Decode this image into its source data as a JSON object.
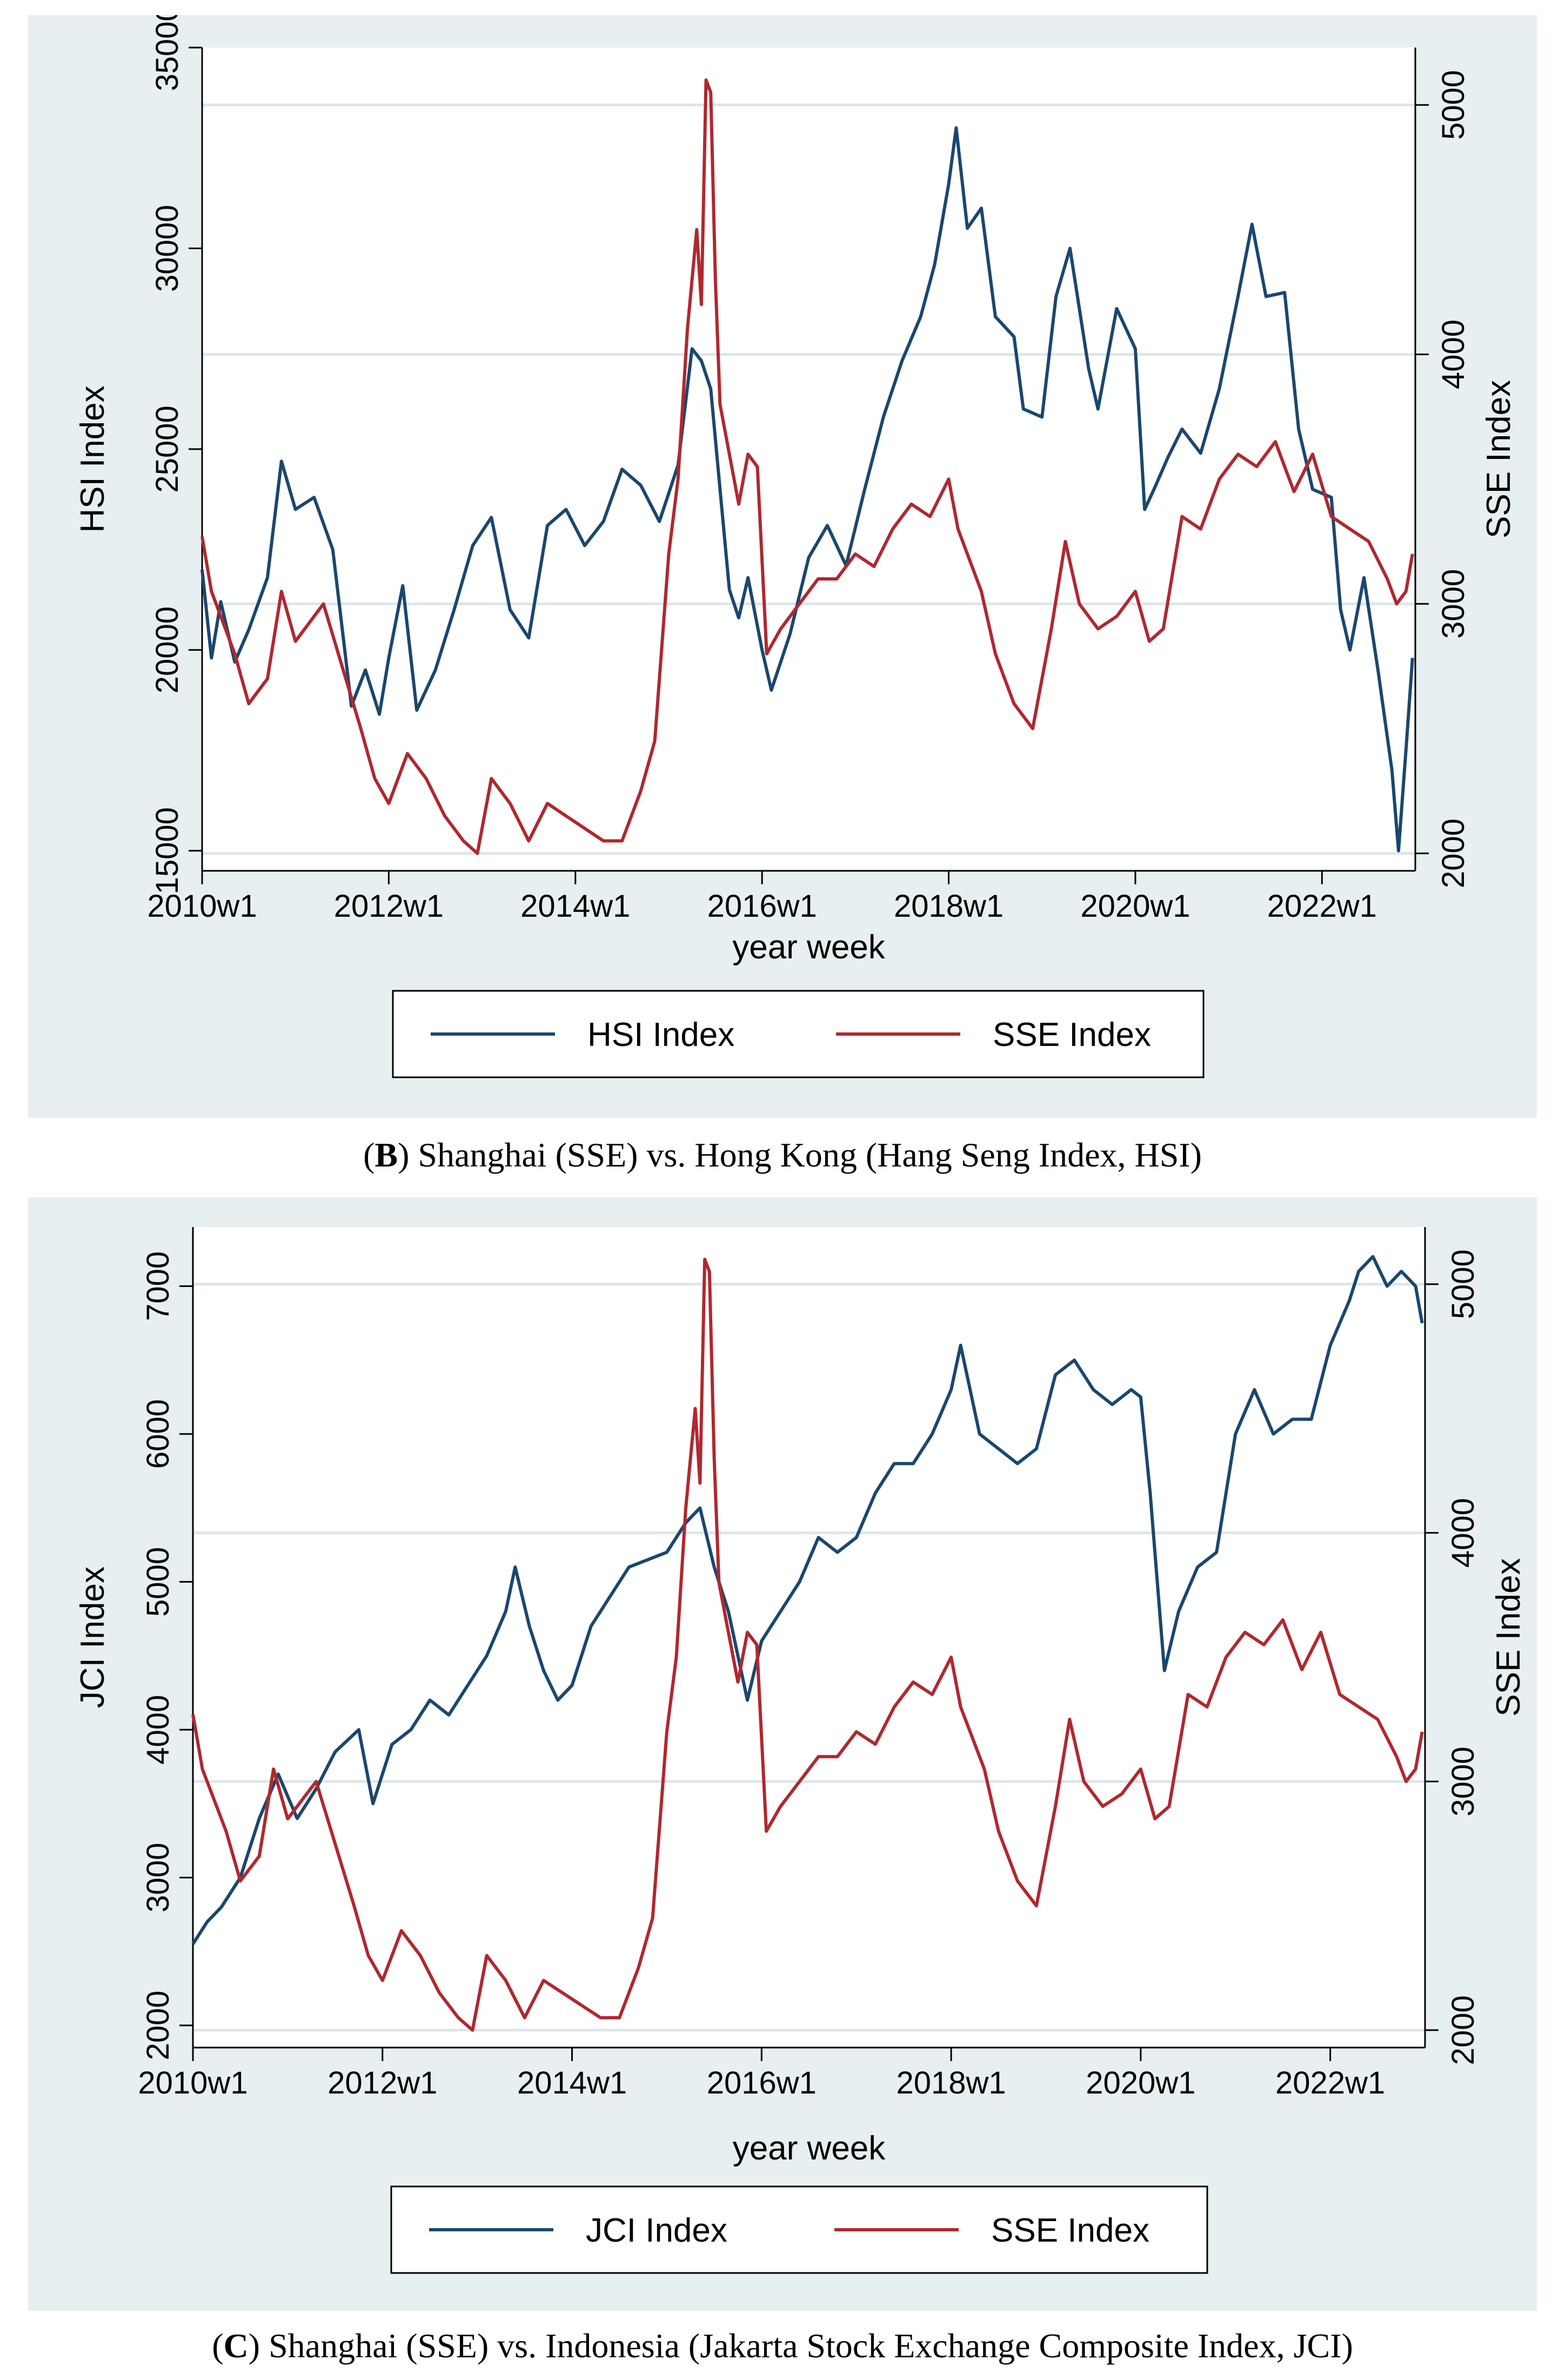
{
  "panels": [
    {
      "caption_letter": "B",
      "caption_text": ") Shanghai (SSE) vs. Hong Kong (Hang Seng Index, HSI)",
      "chart_data": {
        "type": "line",
        "xlabel": "year week",
        "x_ticks": [
          "2010w1",
          "2012w1",
          "2014w1",
          "2016w1",
          "2018w1",
          "2020w1",
          "2022w1"
        ],
        "x_range": [
          2010.0,
          2023.0
        ],
        "left_axis": {
          "label": "HSI Index",
          "ticks": [
            15000,
            20000,
            25000,
            30000,
            35000
          ],
          "range": [
            14500,
            35000
          ]
        },
        "right_axis": {
          "label": "SSE Index",
          "ticks": [
            2000,
            3000,
            4000,
            5000
          ],
          "range": [
            1930,
            5230
          ]
        },
        "legend": [
          "HSI Index",
          "SSE Index"
        ],
        "legend_position": "bottom",
        "series": [
          {
            "name": "HSI Index",
            "axis": "left",
            "color": "#1a476f",
            "x": [
              2010.0,
              2010.1,
              2010.2,
              2010.35,
              2010.5,
              2010.7,
              2010.85,
              2011.0,
              2011.2,
              2011.4,
              2011.6,
              2011.75,
              2011.9,
              2012.0,
              2012.15,
              2012.3,
              2012.5,
              2012.7,
              2012.9,
              2013.1,
              2013.3,
              2013.5,
              2013.7,
              2013.9,
              2014.1,
              2014.3,
              2014.5,
              2014.7,
              2014.9,
              2015.1,
              2015.25,
              2015.35,
              2015.45,
              2015.55,
              2015.65,
              2015.75,
              2015.85,
              2016.0,
              2016.1,
              2016.3,
              2016.5,
              2016.7,
              2016.9,
              2017.1,
              2017.3,
              2017.5,
              2017.7,
              2017.85,
              2018.0,
              2018.08,
              2018.2,
              2018.35,
              2018.5,
              2018.7,
              2018.8,
              2019.0,
              2019.15,
              2019.3,
              2019.5,
              2019.6,
              2019.8,
              2020.0,
              2020.1,
              2020.2,
              2020.35,
              2020.5,
              2020.7,
              2020.9,
              2021.1,
              2021.25,
              2021.4,
              2021.6,
              2021.75,
              2021.9,
              2022.1,
              2022.2,
              2022.3,
              2022.45,
              2022.6,
              2022.75,
              2022.82,
              2022.9,
              2022.97
            ],
            "values": [
              22000,
              19800,
              21200,
              19700,
              20500,
              21800,
              24700,
              23500,
              23800,
              22500,
              18600,
              19500,
              18400,
              19800,
              21600,
              18500,
              19500,
              21000,
              22600,
              23300,
              21000,
              20300,
              23100,
              23500,
              22600,
              23200,
              24500,
              24100,
              23200,
              24600,
              27500,
              27200,
              26500,
              24000,
              21500,
              20800,
              21800,
              20000,
              19000,
              20400,
              22300,
              23100,
              22100,
              24000,
              25800,
              27200,
              28300,
              29600,
              31600,
              33000,
              30500,
              31000,
              28300,
              27800,
              26000,
              25800,
              28800,
              30000,
              27000,
              26000,
              28500,
              27500,
              23500,
              24000,
              24800,
              25500,
              24900,
              26500,
              28800,
              30600,
              28800,
              28900,
              25500,
              24000,
              23800,
              21000,
              20000,
              21800,
              19500,
              17000,
              15000,
              17500,
              19800
            ]
          },
          {
            "name": "SSE Index",
            "axis": "right",
            "color": "#b0282f",
            "x": [
              2010.0,
              2010.1,
              2010.2,
              2010.35,
              2010.5,
              2010.7,
              2010.85,
              2011.0,
              2011.3,
              2011.5,
              2011.7,
              2011.85,
              2012.0,
              2012.2,
              2012.4,
              2012.6,
              2012.8,
              2012.95,
              2013.1,
              2013.3,
              2013.5,
              2013.7,
              2013.9,
              2014.1,
              2014.3,
              2014.5,
              2014.7,
              2014.85,
              2015.0,
              2015.1,
              2015.2,
              2015.3,
              2015.35,
              2015.4,
              2015.45,
              2015.5,
              2015.55,
              2015.65,
              2015.75,
              2015.85,
              2015.95,
              2016.05,
              2016.2,
              2016.4,
              2016.6,
              2016.8,
              2017.0,
              2017.2,
              2017.4,
              2017.6,
              2017.8,
              2018.0,
              2018.1,
              2018.2,
              2018.35,
              2018.5,
              2018.7,
              2018.9,
              2019.1,
              2019.25,
              2019.4,
              2019.6,
              2019.8,
              2020.0,
              2020.15,
              2020.3,
              2020.5,
              2020.7,
              2020.9,
              2021.1,
              2021.3,
              2021.5,
              2021.7,
              2021.9,
              2022.1,
              2022.3,
              2022.5,
              2022.7,
              2022.8,
              2022.9,
              2022.97
            ],
            "values": [
              3270,
              3050,
              2950,
              2800,
              2600,
              2700,
              3050,
              2850,
              3000,
              2750,
              2500,
              2300,
              2200,
              2400,
              2300,
              2150,
              2050,
              2000,
              2300,
              2200,
              2050,
              2200,
              2150,
              2100,
              2050,
              2050,
              2250,
              2450,
              3200,
              3500,
              4100,
              4500,
              4200,
              5100,
              5050,
              4300,
              3800,
              3600,
              3400,
              3600,
              3550,
              2800,
              2900,
              3000,
              3100,
              3100,
              3200,
              3150,
              3300,
              3400,
              3350,
              3500,
              3300,
              3200,
              3050,
              2800,
              2600,
              2500,
              2900,
              3250,
              3000,
              2900,
              2950,
              3050,
              2850,
              2900,
              3350,
              3300,
              3500,
              3600,
              3550,
              3650,
              3450,
              3600,
              3350,
              3300,
              3250,
              3100,
              3000,
              3050,
              3200
            ]
          }
        ]
      }
    },
    {
      "caption_letter": "C",
      "caption_text": ") Shanghai (SSE) vs. Indonesia (Jakarta Stock Exchange Composite Index, JCI)",
      "chart_data": {
        "type": "line",
        "xlabel": "year week",
        "x_ticks": [
          "2010w1",
          "2012w1",
          "2014w1",
          "2016w1",
          "2018w1",
          "2020w1",
          "2022w1"
        ],
        "x_range": [
          2010.0,
          2023.0
        ],
        "left_axis": {
          "label": "JCI Index",
          "ticks": [
            2000,
            3000,
            4000,
            5000,
            6000,
            7000
          ],
          "range": [
            1850,
            7400
          ]
        },
        "right_axis": {
          "label": "SSE Index",
          "ticks": [
            2000,
            3000,
            4000,
            5000
          ],
          "range": [
            1930,
            5230
          ]
        },
        "legend": [
          "JCI Index",
          "SSE Index"
        ],
        "legend_position": "bottom",
        "series": [
          {
            "name": "JCI Index",
            "axis": "left",
            "color": "#1a476f",
            "x": [
              2010.0,
              2010.15,
              2010.3,
              2010.5,
              2010.7,
              2010.9,
              2011.1,
              2011.3,
              2011.5,
              2011.75,
              2011.9,
              2012.1,
              2012.3,
              2012.5,
              2012.7,
              2012.9,
              2013.1,
              2013.3,
              2013.4,
              2013.55,
              2013.7,
              2013.85,
              2014.0,
              2014.2,
              2014.4,
              2014.6,
              2014.8,
              2015.0,
              2015.2,
              2015.35,
              2015.5,
              2015.65,
              2015.75,
              2015.85,
              2016.0,
              2016.2,
              2016.4,
              2016.6,
              2016.8,
              2017.0,
              2017.2,
              2017.4,
              2017.6,
              2017.8,
              2018.0,
              2018.1,
              2018.3,
              2018.5,
              2018.7,
              2018.9,
              2019.1,
              2019.3,
              2019.5,
              2019.7,
              2019.9,
              2020.0,
              2020.1,
              2020.25,
              2020.4,
              2020.6,
              2020.8,
              2021.0,
              2021.2,
              2021.4,
              2021.6,
              2021.8,
              2022.0,
              2022.2,
              2022.3,
              2022.45,
              2022.6,
              2022.75,
              2022.9,
              2022.97
            ],
            "values": [
              2550,
              2700,
              2800,
              3000,
              3400,
              3700,
              3400,
              3600,
              3850,
              4000,
              3500,
              3900,
              4000,
              4200,
              4100,
              4300,
              4500,
              4800,
              5100,
              4700,
              4400,
              4200,
              4300,
              4700,
              4900,
              5100,
              5150,
              5200,
              5400,
              5500,
              5100,
              4800,
              4500,
              4200,
              4600,
              4800,
              5000,
              5300,
              5200,
              5300,
              5600,
              5800,
              5800,
              6000,
              6300,
              6600,
              6000,
              5900,
              5800,
              5900,
              6400,
              6500,
              6300,
              6200,
              6300,
              6250,
              5600,
              4400,
              4800,
              5100,
              5200,
              6000,
              6300,
              6000,
              6100,
              6100,
              6600,
              6900,
              7100,
              7200,
              7000,
              7100,
              7000,
              6750
            ]
          },
          {
            "name": "SSE Index",
            "axis": "right",
            "color": "#b0282f",
            "x": [
              2010.0,
              2010.1,
              2010.2,
              2010.35,
              2010.5,
              2010.7,
              2010.85,
              2011.0,
              2011.3,
              2011.5,
              2011.7,
              2011.85,
              2012.0,
              2012.2,
              2012.4,
              2012.6,
              2012.8,
              2012.95,
              2013.1,
              2013.3,
              2013.5,
              2013.7,
              2013.9,
              2014.1,
              2014.3,
              2014.5,
              2014.7,
              2014.85,
              2015.0,
              2015.1,
              2015.2,
              2015.3,
              2015.35,
              2015.4,
              2015.45,
              2015.5,
              2015.55,
              2015.65,
              2015.75,
              2015.85,
              2015.95,
              2016.05,
              2016.2,
              2016.4,
              2016.6,
              2016.8,
              2017.0,
              2017.2,
              2017.4,
              2017.6,
              2017.8,
              2018.0,
              2018.1,
              2018.2,
              2018.35,
              2018.5,
              2018.7,
              2018.9,
              2019.1,
              2019.25,
              2019.4,
              2019.6,
              2019.8,
              2020.0,
              2020.15,
              2020.3,
              2020.5,
              2020.7,
              2020.9,
              2021.1,
              2021.3,
              2021.5,
              2021.7,
              2021.9,
              2022.1,
              2022.3,
              2022.5,
              2022.7,
              2022.8,
              2022.9,
              2022.97
            ],
            "values": [
              3270,
              3050,
              2950,
              2800,
              2600,
              2700,
              3050,
              2850,
              3000,
              2750,
              2500,
              2300,
              2200,
              2400,
              2300,
              2150,
              2050,
              2000,
              2300,
              2200,
              2050,
              2200,
              2150,
              2100,
              2050,
              2050,
              2250,
              2450,
              3200,
              3500,
              4100,
              4500,
              4200,
              5100,
              5050,
              4300,
              3800,
              3600,
              3400,
              3600,
              3550,
              2800,
              2900,
              3000,
              3100,
              3100,
              3200,
              3150,
              3300,
              3400,
              3350,
              3500,
              3300,
              3200,
              3050,
              2800,
              2600,
              2500,
              2900,
              3250,
              3000,
              2900,
              2950,
              3050,
              2850,
              2900,
              3350,
              3300,
              3500,
              3600,
              3550,
              3650,
              3450,
              3600,
              3350,
              3300,
              3250,
              3100,
              3000,
              3050,
              3200
            ]
          }
        ]
      }
    }
  ]
}
